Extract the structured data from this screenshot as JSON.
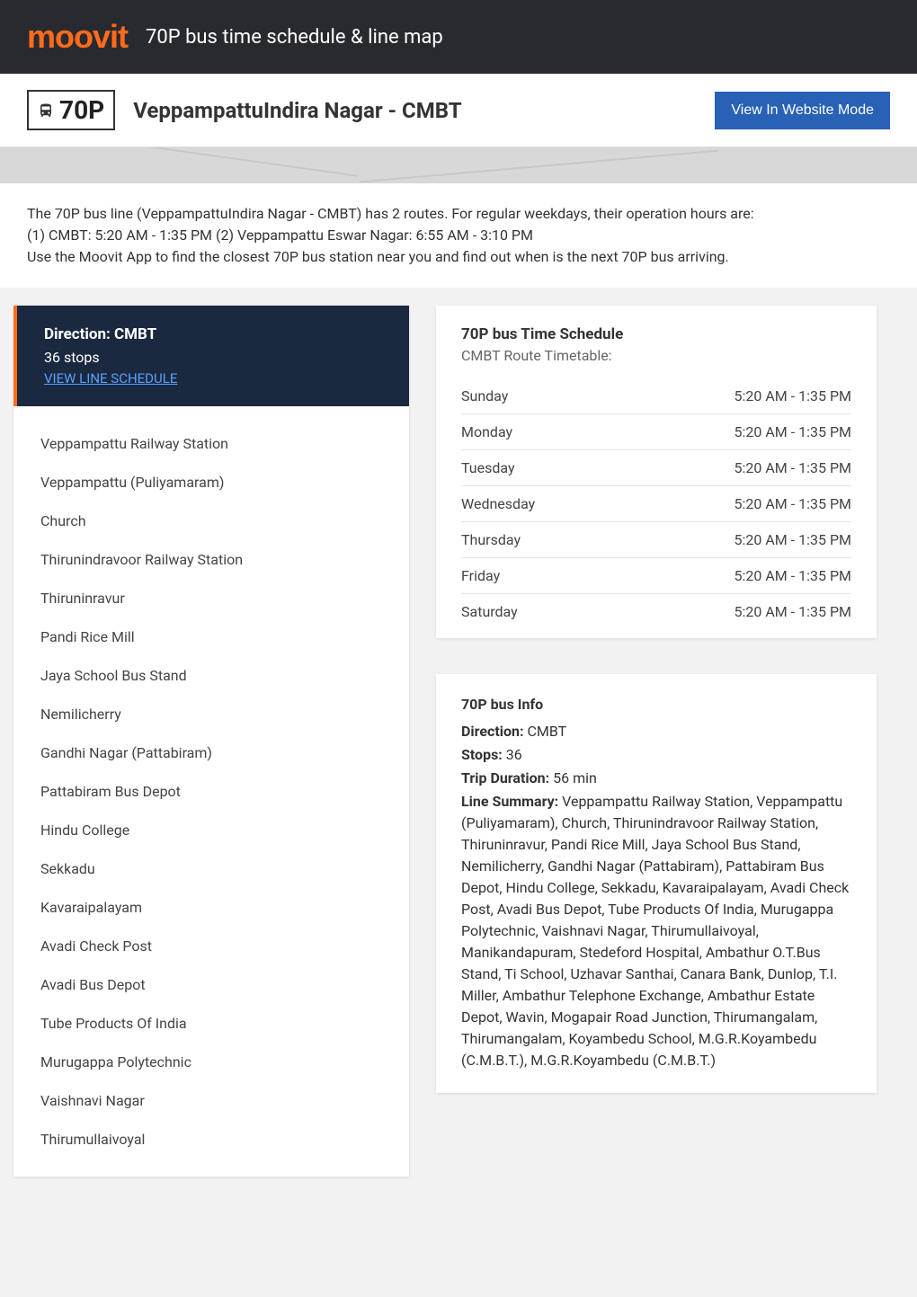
{
  "brand": {
    "name": "moovit",
    "color": "#ff6b1a"
  },
  "header": {
    "title": "70P bus time schedule & line map"
  },
  "route": {
    "number": "70P",
    "name": "VeppampattuIndira Nagar - CMBT",
    "website_button": "View In Website Mode"
  },
  "intro": {
    "line1": "The 70P bus line (VeppampattuIndira Nagar - CMBT) has 2 routes. For regular weekdays, their operation hours are:",
    "line2": "(1) CMBT: 5:20 AM - 1:35 PM (2) Veppampattu Eswar Nagar: 6:55 AM - 3:10 PM",
    "line3": "Use the Moovit App to find the closest 70P bus station near you and find out when is the next 70P bus arriving."
  },
  "direction": {
    "title": "Direction: CMBT",
    "stops_count": "36 stops",
    "view_schedule": "VIEW LINE SCHEDULE"
  },
  "stops": [
    "Veppampattu Railway Station",
    "Veppampattu (Puliyamaram)",
    "Church",
    "Thirunindravoor Railway Station",
    "Thiruninravur",
    "Pandi Rice Mill",
    "Jaya School Bus Stand",
    "Nemilicherry",
    "Gandhi Nagar (Pattabiram)",
    "Pattabiram Bus Depot",
    "Hindu College",
    "Sekkadu",
    "Kavaraipalayam",
    "Avadi Check Post",
    "Avadi Bus Depot",
    "Tube Products Of India",
    "Murugappa Polytechnic",
    "Vaishnavi Nagar",
    "Thirumullaivoyal"
  ],
  "schedule": {
    "title": "70P bus Time Schedule",
    "subtitle": "CMBT Route Timetable:",
    "rows": [
      {
        "day": "Sunday",
        "time": "5:20 AM - 1:35 PM"
      },
      {
        "day": "Monday",
        "time": "5:20 AM - 1:35 PM"
      },
      {
        "day": "Tuesday",
        "time": "5:20 AM - 1:35 PM"
      },
      {
        "day": "Wednesday",
        "time": "5:20 AM - 1:35 PM"
      },
      {
        "day": "Thursday",
        "time": "5:20 AM - 1:35 PM"
      },
      {
        "day": "Friday",
        "time": "5:20 AM - 1:35 PM"
      },
      {
        "day": "Saturday",
        "time": "5:20 AM - 1:35 PM"
      }
    ]
  },
  "info": {
    "title": "70P bus Info",
    "direction_label": "Direction:",
    "direction_value": " CMBT",
    "stops_label": "Stops:",
    "stops_value": " 36",
    "duration_label": "Trip Duration:",
    "duration_value": " 56 min",
    "summary_label": "Line Summary:",
    "summary_value": " Veppampattu Railway Station, Veppampattu (Puliyamaram), Church, Thirunindravoor Railway Station, Thiruninravur, Pandi Rice Mill, Jaya School Bus Stand, Nemilicherry, Gandhi Nagar (Pattabiram), Pattabiram Bus Depot, Hindu College, Sekkadu, Kavaraipalayam, Avadi Check Post, Avadi Bus Depot, Tube Products Of India, Murugappa Polytechnic, Vaishnavi Nagar, Thirumullaivoyal, Manikandapuram, Stedeford Hospital, Ambathur O.T.Bus Stand, Ti School, Uzhavar Santhai, Canara Bank, Dunlop, T.I. Miller, Ambathur Telephone Exchange, Ambathur Estate Depot, Wavin, Mogapair Road Junction, Thirumangalam, Thirumangalam, Koyambedu School, M.G.R.Koyambedu (C.M.B.T.), M.G.R.Koyambedu (C.M.B.T.)"
  },
  "colors": {
    "header_bg": "#292a30",
    "brand": "#ff6b1a",
    "button": "#2861b5",
    "direction_bg": "#1a2940",
    "link": "#5aa0ff"
  }
}
